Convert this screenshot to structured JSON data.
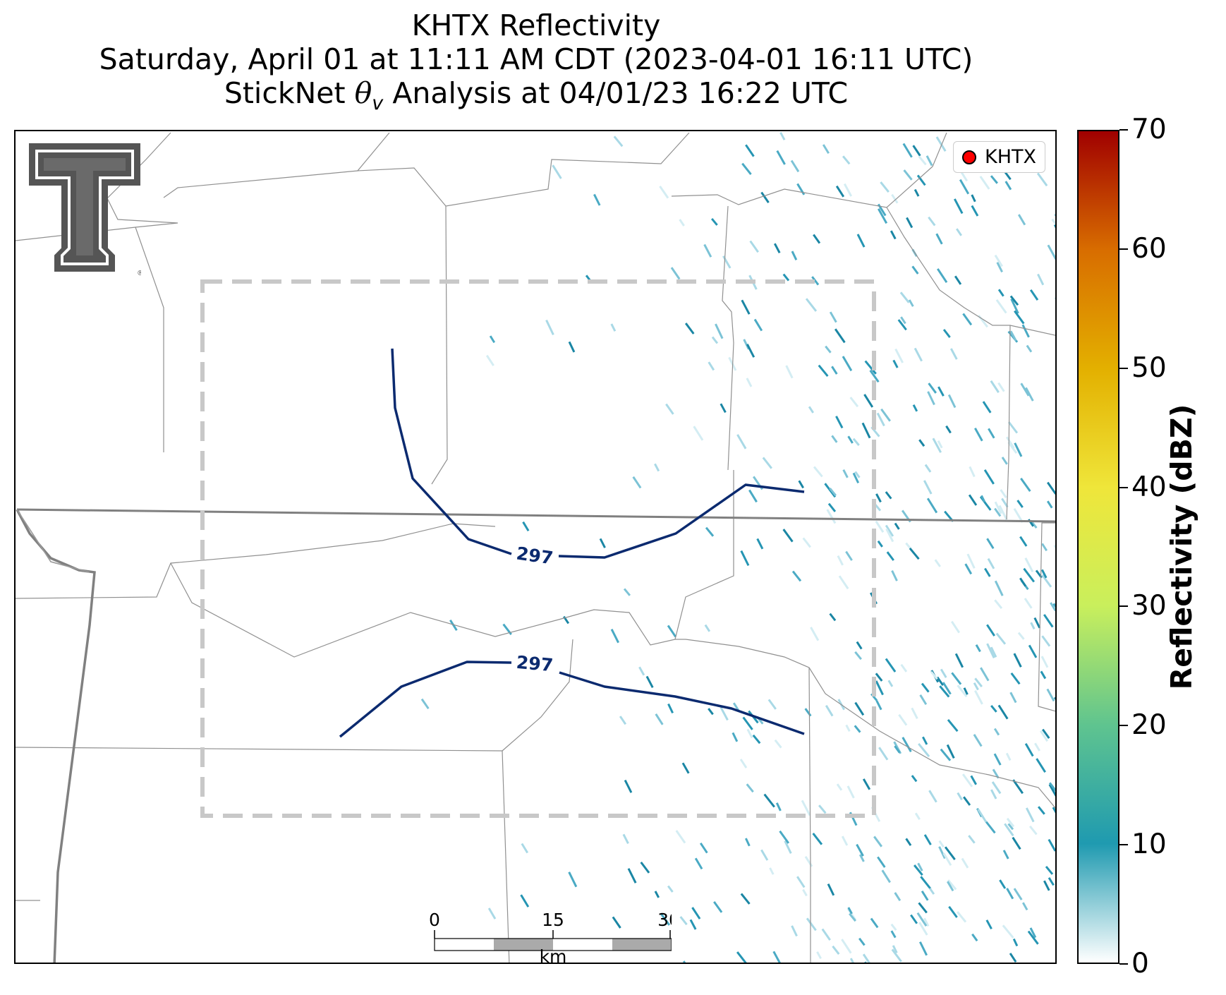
{
  "title": {
    "line1": "KHTX Reflectivity",
    "line2": "Saturday, April 01 at 11:11 AM CDT (2023-04-01 16:11 UTC)",
    "line3_prefix": "StickNet ",
    "line3_symbol": "θ",
    "line3_subscript": "v",
    "line3_suffix": " Analysis at 04/01/23 16:22 UTC"
  },
  "legend": {
    "label": "KHTX",
    "marker_color": "#ff0000"
  },
  "logo": {
    "icon": "texas-tech-double-t-logo",
    "registered_mark": "®"
  },
  "contours": [
    {
      "label": "297",
      "color": "#0b2a6f"
    },
    {
      "label": "297",
      "color": "#0b2a6f"
    }
  ],
  "analysis_domain": {
    "style": "dashed",
    "color": "#c8c8c8"
  },
  "scalebar": {
    "ticks": [
      "0",
      "15",
      "30"
    ],
    "unit": "km",
    "fill_colors": [
      "#ffffff",
      "#aaaaaa",
      "#ffffff",
      "#aaaaaa"
    ]
  },
  "colorbar": {
    "title": "Reflectivity (dBZ)",
    "min": 0,
    "max": 70,
    "ticks": [
      "0",
      "10",
      "20",
      "30",
      "40",
      "50",
      "60",
      "70"
    ],
    "stops": [
      "#ffffff",
      "#1f9ab0",
      "#5fc48f",
      "#c9ef5c",
      "#efe63a",
      "#e3b000",
      "#d86d00",
      "#a00000"
    ]
  }
}
